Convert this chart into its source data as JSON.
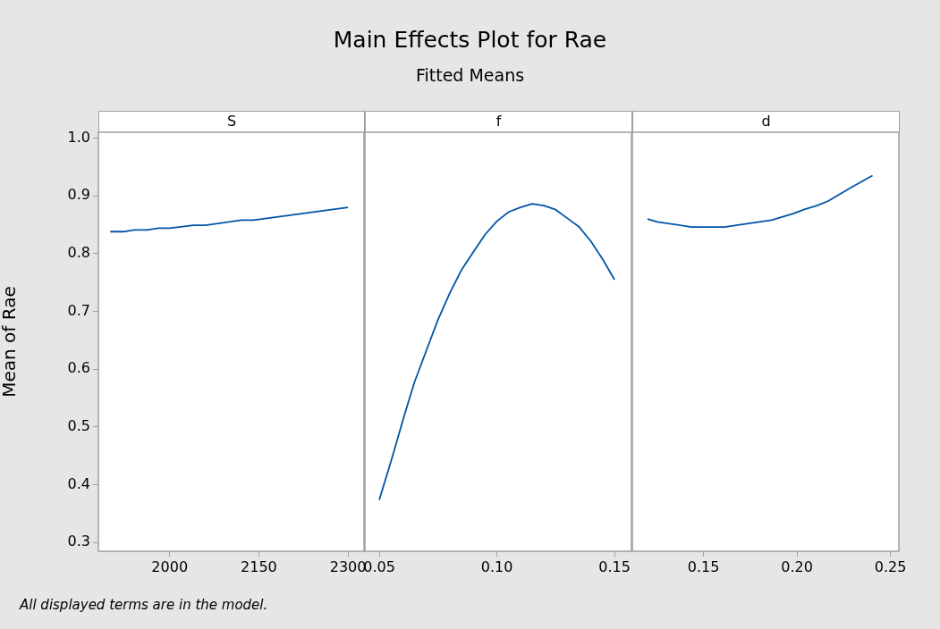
{
  "chart_data": [
    {
      "type": "other",
      "title": "Main Effects Plot for Rae",
      "subtitle": "Fitted Means",
      "annotations": [
        "All displayed terms are in the model."
      ]
    },
    {
      "type": "line",
      "xlabel": "S",
      "ylabel": "Mean of Rae",
      "x": [
        1900,
        1922,
        1940,
        1962,
        1981,
        2000,
        2040,
        2060,
        2121,
        2141,
        2300
      ],
      "series": [
        {
          "color": "#0054a6",
          "values": [
            0.838,
            0.838,
            0.841,
            0.841,
            0.844,
            0.844,
            0.849,
            0.849,
            0.858,
            0.858,
            0.88
          ]
        }
      ],
      "xlim": [
        1880,
        2327
      ],
      "xticks": [
        2000,
        2150,
        2300
      ],
      "ylim": [
        0.285,
        1.01
      ],
      "yticks": [
        {
          "value": 0.3,
          "label": "0.3"
        },
        {
          "value": 0.4,
          "label": "0.4"
        },
        {
          "value": 0.5,
          "label": "0.5"
        },
        {
          "value": 0.6,
          "label": "0.6"
        },
        {
          "value": 0.7,
          "label": "0.7"
        },
        {
          "value": 0.8,
          "label": "0.8"
        },
        {
          "value": 0.9,
          "label": "0.9"
        },
        {
          "value": 1,
          "label": "1.0"
        }
      ],
      "grid": false,
      "legend": false,
      "marker": "none",
      "line_style": "solid"
    },
    {
      "type": "line",
      "xlabel": "f",
      "x": [
        0.05,
        0.0554,
        0.0605,
        0.065,
        0.07,
        0.075,
        0.08,
        0.085,
        0.09,
        0.095,
        0.1,
        0.105,
        0.11,
        0.115,
        0.12,
        0.125,
        0.13,
        0.135,
        0.14,
        0.145,
        0.15
      ],
      "series": [
        {
          "color": "#0054a6",
          "values": [
            0.374,
            0.446,
            0.518,
            0.578,
            0.632,
            0.686,
            0.732,
            0.772,
            0.803,
            0.833,
            0.856,
            0.872,
            0.88,
            0.886,
            0.883,
            0.876,
            0.861,
            0.846,
            0.821,
            0.79,
            0.755
          ]
        }
      ],
      "xlim": [
        0.0439,
        0.1572
      ],
      "xticks": [
        {
          "value": 0.05,
          "label": "0.05"
        },
        {
          "value": 0.1,
          "label": "0.10"
        },
        {
          "value": 0.15,
          "label": "0.15"
        }
      ],
      "ylim": [
        0.285,
        1.01
      ],
      "tick_labels": "x",
      "grid": false,
      "legend": false,
      "marker": "none",
      "line_style": "solid"
    },
    {
      "type": "line",
      "xlabel": "d",
      "x": [
        0.12,
        0.1253,
        0.1436,
        0.1612,
        0.174,
        0.1864,
        0.1979,
        0.2043,
        0.2107,
        0.2167,
        0.2282,
        0.2404
      ],
      "series": [
        {
          "color": "#0054a6",
          "values": [
            0.86,
            0.855,
            0.846,
            0.846,
            0.852,
            0.858,
            0.869,
            0.877,
            0.883,
            0.891,
            0.913,
            0.935
          ]
        }
      ],
      "xlim": [
        0.1119,
        0.2545
      ],
      "xticks": [
        {
          "value": 0.15,
          "label": "0.15"
        },
        {
          "value": 0.2,
          "label": "0.20"
        },
        {
          "value": 0.25,
          "label": "0.25"
        }
      ],
      "ylim": [
        0.285,
        1.01
      ],
      "tick_labels": "x",
      "grid": false,
      "legend": false,
      "marker": "none",
      "line_style": "solid"
    }
  ]
}
